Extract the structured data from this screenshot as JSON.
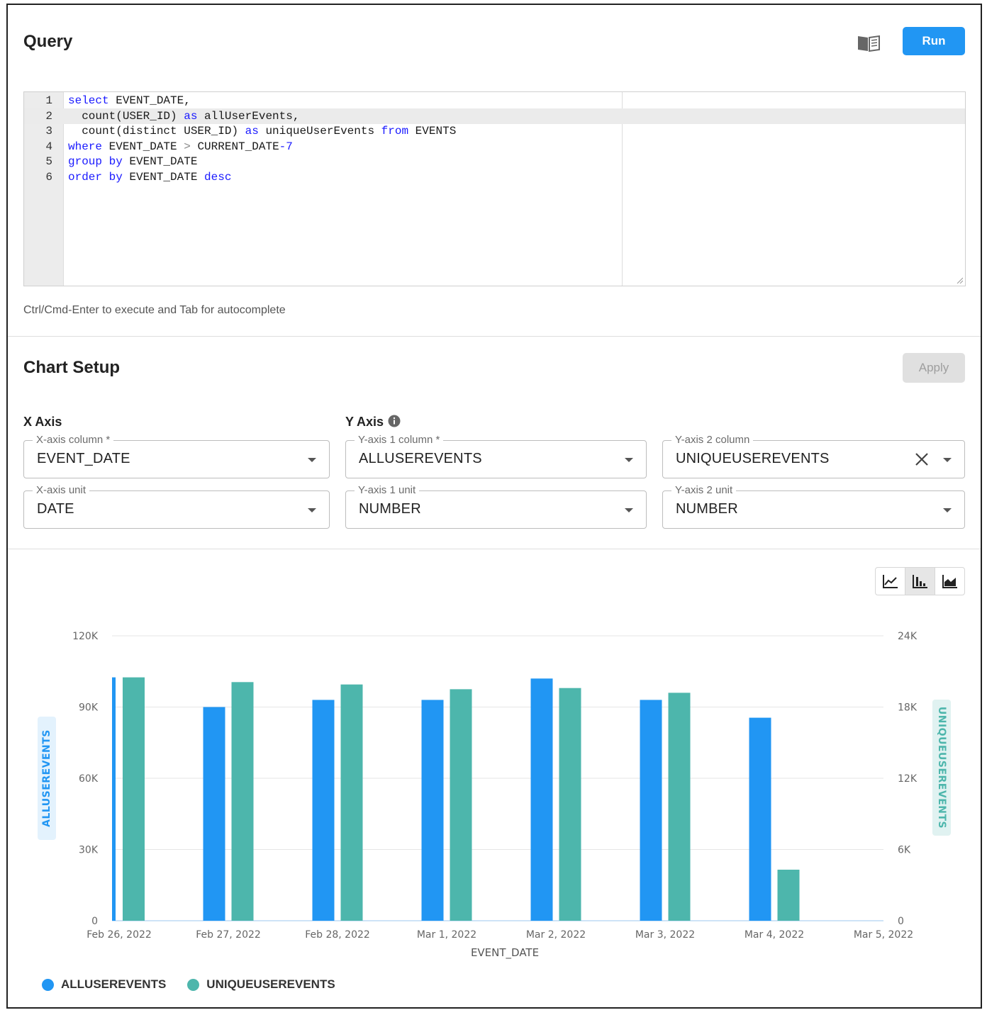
{
  "query": {
    "title": "Query",
    "run_label": "Run",
    "hint": "Ctrl/Cmd-Enter to execute and Tab for autocomplete",
    "lines": [
      {
        "n": "1",
        "tokens": [
          {
            "t": "select",
            "c": "kw"
          },
          {
            "t": " EVENT_DATE,",
            "c": ""
          }
        ]
      },
      {
        "n": "2",
        "tokens": [
          {
            "t": "  count(USER_ID) ",
            "c": ""
          },
          {
            "t": "as",
            "c": "kw"
          },
          {
            "t": " allUserEvents,",
            "c": ""
          }
        ]
      },
      {
        "n": "3",
        "tokens": [
          {
            "t": "  count(distinct USER_ID) ",
            "c": ""
          },
          {
            "t": "as",
            "c": "kw"
          },
          {
            "t": " uniqueUserEvents ",
            "c": ""
          },
          {
            "t": "from",
            "c": "kw"
          },
          {
            "t": " EVENTS",
            "c": ""
          }
        ]
      },
      {
        "n": "4",
        "tokens": [
          {
            "t": "where",
            "c": "kw"
          },
          {
            "t": " EVENT_DATE ",
            "c": ""
          },
          {
            "t": ">",
            "c": "op"
          },
          {
            "t": " CURRENT_DATE",
            "c": ""
          },
          {
            "t": "-7",
            "c": "num"
          }
        ]
      },
      {
        "n": "5",
        "tokens": [
          {
            "t": "group by",
            "c": "kw"
          },
          {
            "t": " EVENT_DATE",
            "c": ""
          }
        ]
      },
      {
        "n": "6",
        "tokens": [
          {
            "t": "order by",
            "c": "kw"
          },
          {
            "t": " EVENT_DATE ",
            "c": ""
          },
          {
            "t": "desc",
            "c": "kw"
          }
        ]
      }
    ],
    "active_line": 2
  },
  "chart_setup": {
    "title": "Chart Setup",
    "apply_label": "Apply",
    "x_axis_heading": "X Axis",
    "y_axis_heading": "Y Axis",
    "x_column_label": "X-axis column *",
    "x_column_value": "EVENT_DATE",
    "x_unit_label": "X-axis unit",
    "x_unit_value": "DATE",
    "y1_column_label": "Y-axis 1 column *",
    "y1_column_value": "ALLUSEREVENTS",
    "y1_unit_label": "Y-axis 1 unit",
    "y1_unit_value": "NUMBER",
    "y2_column_label": "Y-axis 2 column",
    "y2_column_value": "UNIQUEUSEREVENTS",
    "y2_unit_label": "Y-axis 2 unit",
    "y2_unit_value": "NUMBER",
    "chart_types": [
      "line-chart-icon",
      "bar-chart-icon",
      "area-chart-icon"
    ],
    "selected_chart_type": "bar-chart-icon"
  },
  "colors": {
    "primary": "#2196f3",
    "series1": "#2196f3",
    "series2": "#4db6ac"
  },
  "chart_data": {
    "type": "bar",
    "categories": [
      "Feb 26, 2022",
      "Feb 27, 2022",
      "Feb 28, 2022",
      "Mar 1, 2022",
      "Mar 2, 2022",
      "Mar 3, 2022",
      "Mar 4, 2022",
      "Mar 5, 2022"
    ],
    "series": [
      {
        "name": "ALLUSEREVENTS",
        "axis": "left",
        "values": [
          102500,
          90000,
          93000,
          93000,
          102000,
          93000,
          85500,
          null
        ]
      },
      {
        "name": "UNIQUEUSEREVENTS",
        "axis": "right",
        "values": [
          20500,
          20100,
          19900,
          19500,
          19600,
          19200,
          4300,
          null
        ]
      }
    ],
    "xlabel": "EVENT_DATE",
    "ylabel_left": "ALLUSEREVENTS",
    "ylabel_right": "UNIQUEUSEREVENTS",
    "ylim_left": [
      0,
      120000
    ],
    "ylim_right": [
      0,
      24000
    ],
    "yticks_left": [
      "0",
      "30K",
      "60K",
      "90K",
      "120K"
    ],
    "yticks_right": [
      "0",
      "6K",
      "12K",
      "18K",
      "24K"
    ],
    "grid": true,
    "legend_position": "bottom-left"
  }
}
